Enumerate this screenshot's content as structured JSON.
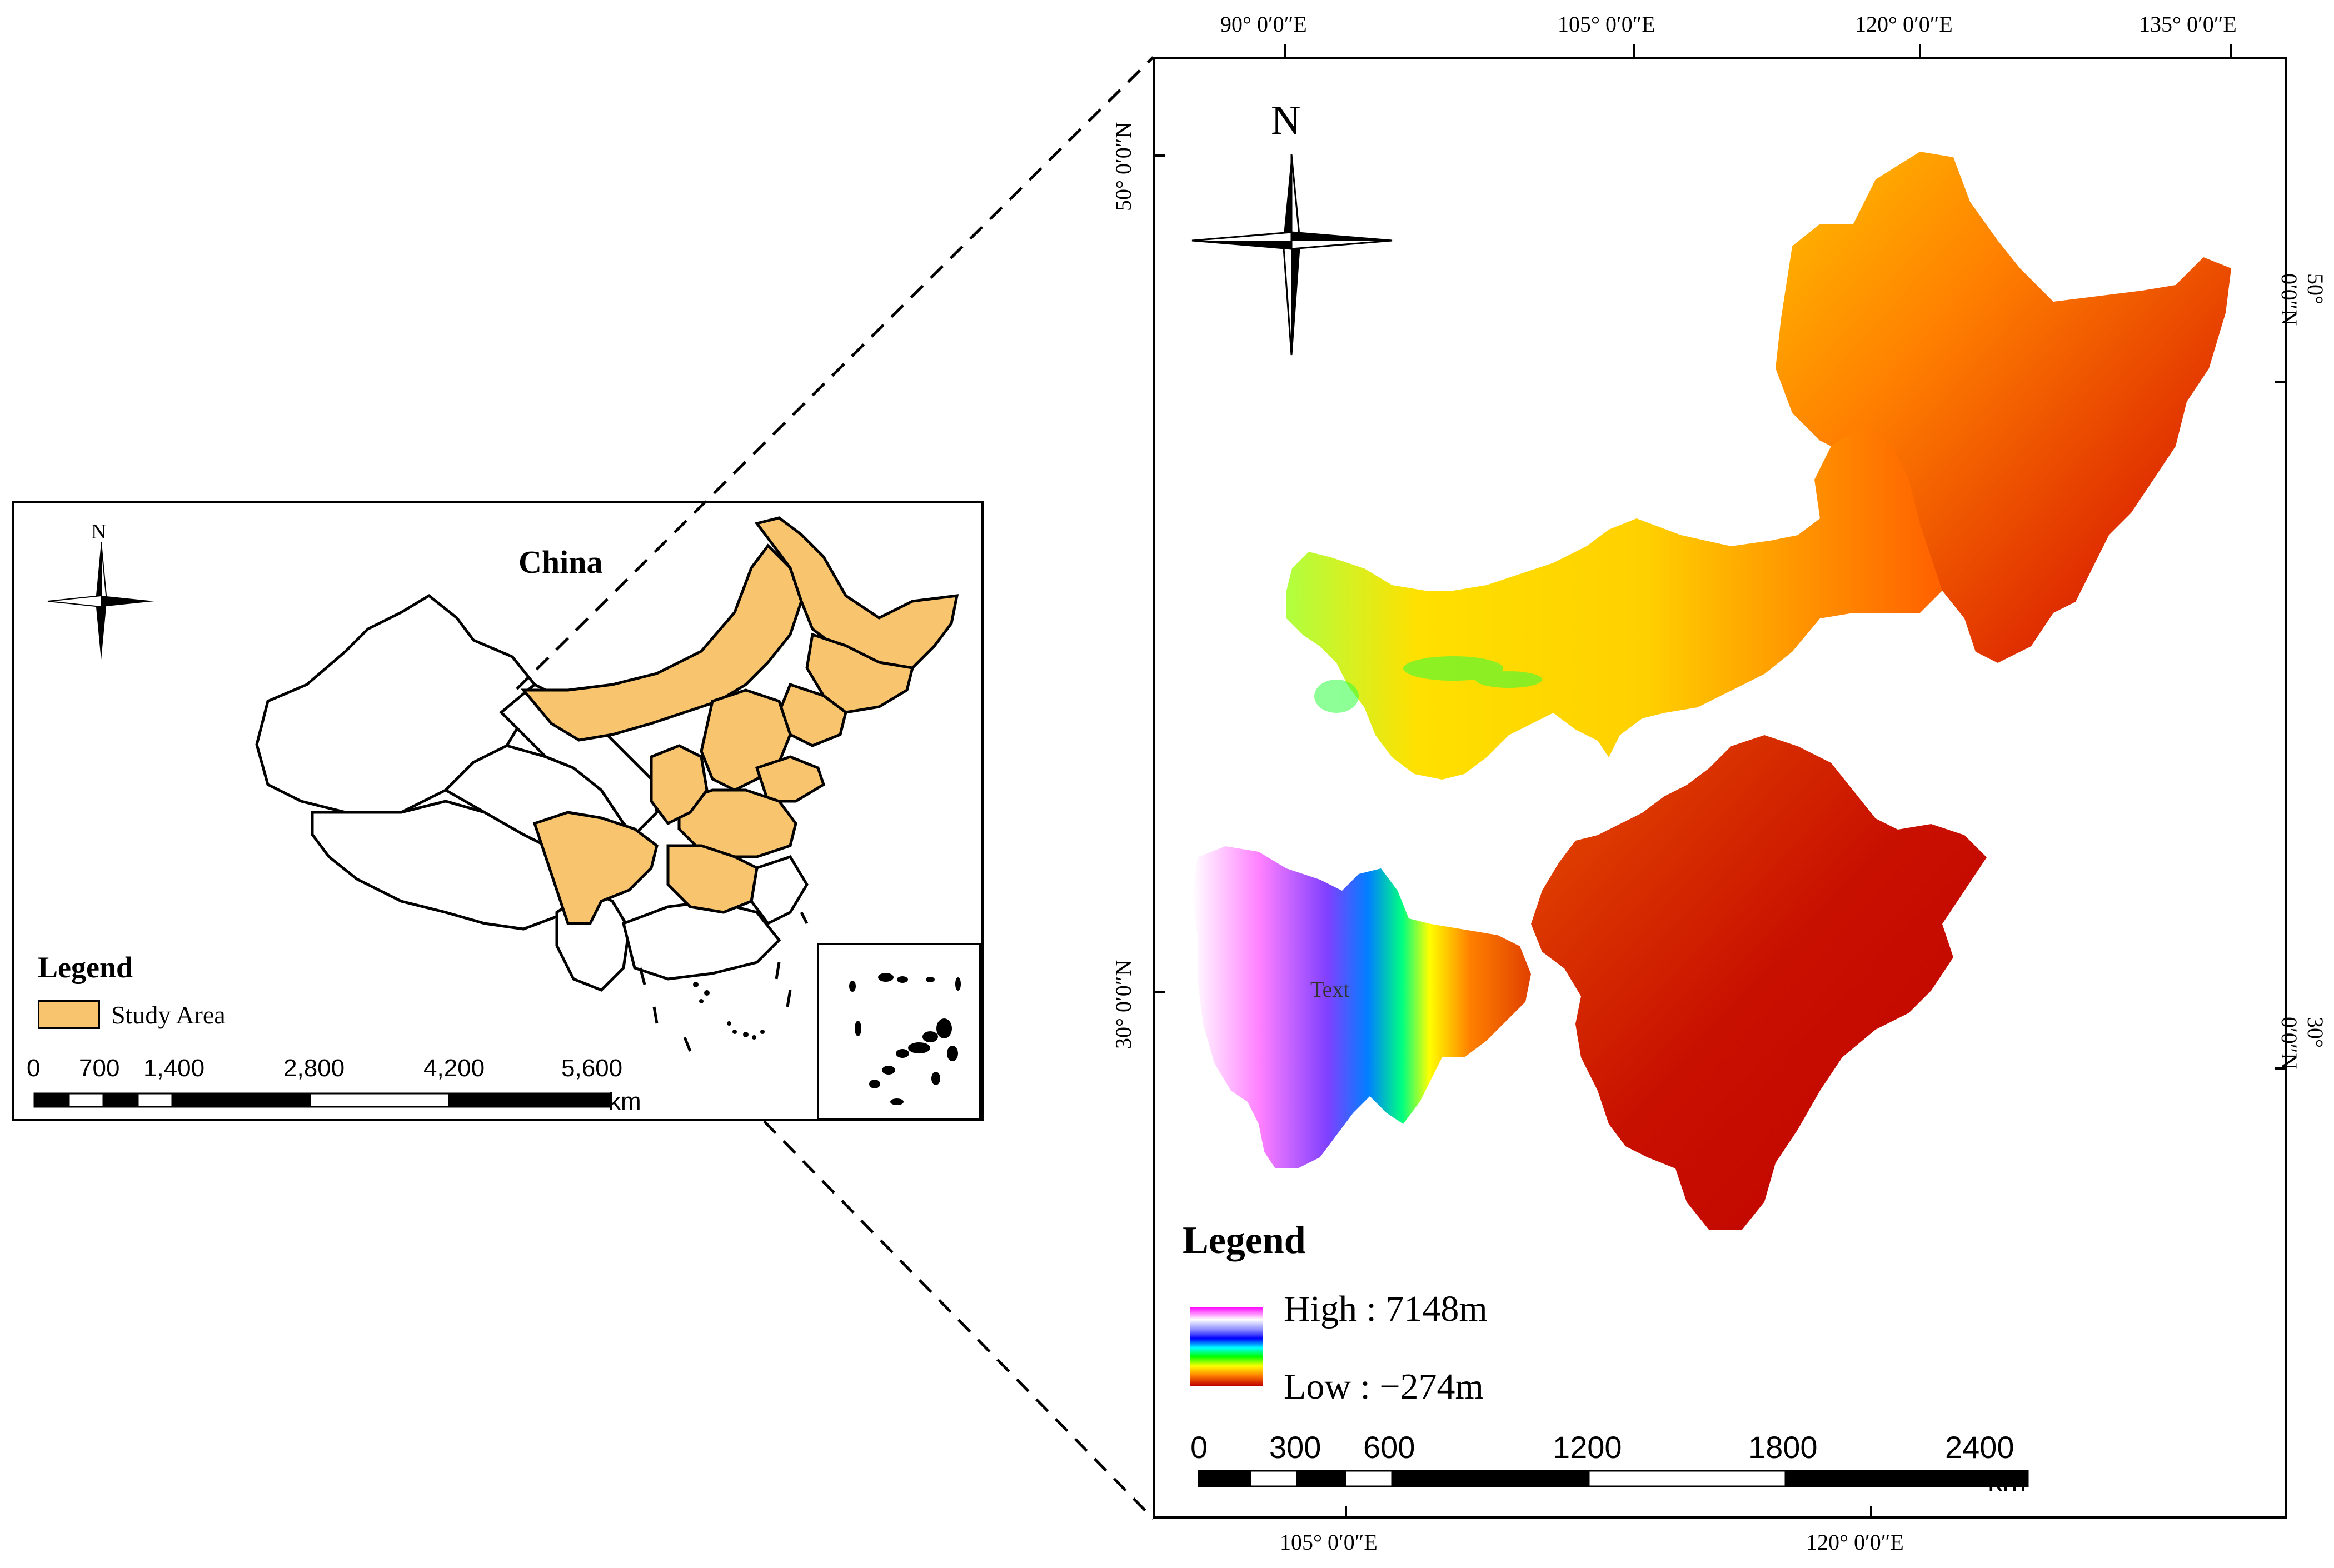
{
  "inset_map": {
    "title": "China",
    "north_label": "N",
    "legend": {
      "title": "Legend",
      "items": [
        {
          "label": "Study Area",
          "color": "#f8c46e"
        }
      ]
    },
    "scale_bar": {
      "ticks": [
        "0",
        "700",
        "1,400",
        "2,800",
        "4,200",
        "5,600"
      ],
      "unit": "km"
    }
  },
  "main_map": {
    "north_label": "N",
    "top_longitudes": [
      "90° 0′0″E",
      "105° 0′0″E",
      "120° 0′0″E",
      "135° 0′0″E"
    ],
    "bottom_longitudes": [
      "105° 0′0″E",
      "120° 0′0″E"
    ],
    "left_latitudes": [
      "50° 0′0″N",
      "30° 0′0″N"
    ],
    "right_latitudes": [
      "50° 0′0″N",
      "30° 0′0″N"
    ],
    "legend": {
      "title": "Legend",
      "high_label": "High : 7148m",
      "low_label": "Low : −274m",
      "ramp_colors": [
        "#ff00ff",
        "#ffffff",
        "#0000ff",
        "#00ffff",
        "#00ff00",
        "#ffff00",
        "#ff8000",
        "#c00000"
      ]
    },
    "stray_label": "Text",
    "scale_bar": {
      "ticks": [
        "0",
        "300",
        "600",
        "1200",
        "1800",
        "2400"
      ],
      "unit": "km"
    }
  },
  "colors": {
    "study_area": "#f8c46e",
    "dem_low": "#c00000",
    "dem_mid": "#ffff00",
    "dem_high": "#ff00ff"
  }
}
